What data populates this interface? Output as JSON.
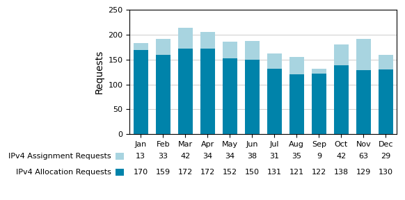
{
  "chart_data": {
    "type": "bar",
    "stacked": true,
    "data_labels": true,
    "grid": true,
    "ylabel": "Requests",
    "categories": [
      "Jan",
      "Feb",
      "Mar",
      "Apr",
      "May",
      "Jun",
      "Jul",
      "Aug",
      "Sep",
      "Oct",
      "Nov",
      "Dec"
    ],
    "series": [
      {
        "name": "IPv4 Allocation Requests",
        "color": "#0083aa",
        "values": [
          170,
          159,
          172,
          172,
          152,
          150,
          131,
          121,
          122,
          138,
          129,
          130
        ]
      },
      {
        "name": "IPv4 Assignment Requests",
        "color": "#a8d4e0",
        "values": [
          13,
          33,
          42,
          34,
          34,
          38,
          31,
          35,
          9,
          42,
          63,
          29
        ]
      }
    ],
    "ylim": [
      0,
      250
    ],
    "yticks": [
      0,
      50,
      100,
      150,
      200,
      250
    ]
  }
}
